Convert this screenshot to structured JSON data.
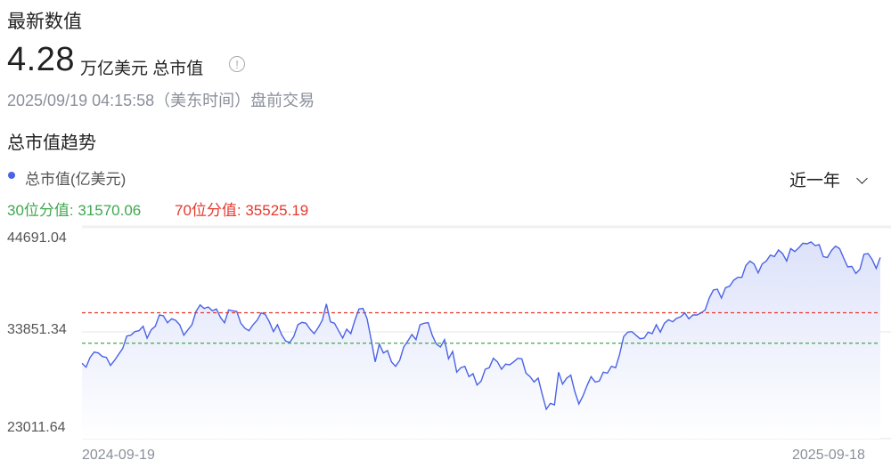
{
  "header": {
    "latest_label": "最新数值",
    "value": "4.28",
    "unit": "万亿美元 总市值",
    "info_icon": "info-circle-icon",
    "timestamp": "2025/09/19 04:15:58（美东时间）盘前交易"
  },
  "trend": {
    "title": "总市值趋势",
    "range_selected": "近一年"
  },
  "colors": {
    "line": "#4a63e6",
    "p30": "#3fa84f",
    "p70": "#e8372c",
    "fill_top": "#dde2fa"
  },
  "chart_data": {
    "type": "area",
    "title": "",
    "legend": [
      "总市值(亿美元)"
    ],
    "legend_placement": "top-left",
    "percentile_30_label": "30位分值: 31570.06",
    "percentile_70_label": "70位分值: 35525.19",
    "percentile_30": 31570.06,
    "percentile_70": 35525.19,
    "x_ticks": [
      "2024-09-19",
      "2025-09-18"
    ],
    "y_ticks": [
      "44691.04",
      "33851.34",
      "23011.64"
    ],
    "ylim": [
      23011.64,
      44691.04
    ],
    "grid": true,
    "series": [
      {
        "name": "总市值(亿美元)",
        "values": [
          28970,
          28471,
          29739,
          30431,
          30316,
          29854,
          29739,
          28702,
          29355,
          30124,
          30893,
          32506,
          32622,
          33083,
          33198,
          33774,
          32237,
          33313,
          33774,
          35234,
          35119,
          34235,
          34735,
          34543,
          33966,
          32622,
          33313,
          33966,
          35696,
          36541,
          36080,
          36272,
          35772,
          36003,
          34927,
          34235,
          35888,
          35772,
          35696,
          34158,
          33505,
          33198,
          33966,
          34543,
          35504,
          35312,
          34351,
          33083,
          33966,
          32698,
          31853,
          31661,
          32429,
          33966,
          34274,
          34158,
          33390,
          32813,
          33582,
          34543,
          36656,
          34351,
          34158,
          33198,
          32237,
          33390,
          32813,
          34543,
          36003,
          36080,
          34735,
          32045,
          29162,
          31468,
          30316,
          30623,
          29162,
          28586,
          29355,
          31084,
          31853,
          32698,
          32045,
          33966,
          34158,
          34235,
          32622,
          31468,
          31084,
          32045,
          29547,
          30508,
          27818,
          28394,
          28586,
          27240,
          27625,
          26164,
          26665,
          28202,
          28394,
          29624,
          29162,
          28202,
          28855,
          28779,
          29162,
          29624,
          29547,
          27702,
          27240,
          26549,
          27049,
          24935,
          23011.64,
          23782,
          23590,
          27818,
          26280,
          27049,
          27433,
          25319,
          23705,
          24743,
          26088,
          27240,
          26549,
          26665,
          27818,
          27702,
          28586,
          28394,
          30124,
          32429,
          33006,
          33083,
          32622,
          32161,
          32237,
          33006,
          32813,
          33966,
          33006,
          34158,
          34619,
          34351,
          34812,
          35004,
          35504,
          34735,
          35234,
          35234,
          35504,
          35888,
          37425,
          38463,
          38578,
          37425,
          38770,
          38962,
          39730,
          40115,
          40115,
          41652,
          42229,
          41845,
          40692,
          41845,
          42229,
          42997,
          42805,
          43651,
          43189,
          42229,
          43843,
          43458,
          43958,
          44534,
          44458,
          44691.04,
          44227,
          44342,
          42805,
          42690,
          43574,
          44150,
          43843,
          42613,
          41460,
          41537,
          40615,
          41153,
          43112,
          43189,
          42421,
          41268,
          42690
        ]
      }
    ]
  }
}
